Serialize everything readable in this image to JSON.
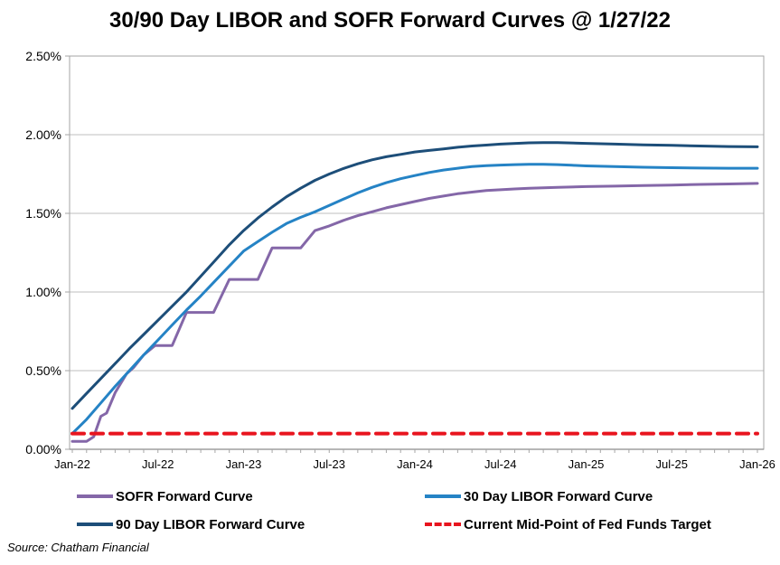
{
  "title": "30/90 Day LIBOR and SOFR Forward Curves @ 1/27/22",
  "source": "Source: Chatham Financial",
  "chart_data": {
    "type": "line",
    "title": "30/90 Day LIBOR and SOFR Forward Curves @ 1/27/22",
    "xlabel": "",
    "ylabel": "",
    "x_unit": "months since Jan-2022",
    "xlim": [
      0,
      48
    ],
    "ylim": [
      0,
      2.5
    ],
    "y_axis_format": "percent",
    "y_ticks": [
      0,
      0.5,
      1.0,
      1.5,
      2.0,
      2.5
    ],
    "y_tick_labels": [
      "0.00%",
      "0.50%",
      "1.00%",
      "1.50%",
      "2.00%",
      "2.50%"
    ],
    "x_tick_months": [
      0,
      6,
      12,
      18,
      24,
      30,
      36,
      42,
      48
    ],
    "x_tick_labels": [
      "Jan-22",
      "Jul-22",
      "Jan-23",
      "Jul-23",
      "Jan-24",
      "Jul-24",
      "Jan-25",
      "Jul-25",
      "Jan-26"
    ],
    "grid": "horizontal",
    "legend_position": "bottom",
    "legend_columns": 2,
    "frame_color": "#a6a6a6",
    "grid_color": "#bfbfbf",
    "series": [
      {
        "name": "SOFR Forward Curve",
        "color": "#8467a8",
        "style": "solid",
        "width": 3,
        "points": [
          [
            0,
            0.05
          ],
          [
            1,
            0.05
          ],
          [
            1.5,
            0.08
          ],
          [
            2,
            0.21
          ],
          [
            2.4,
            0.23
          ],
          [
            3,
            0.36
          ],
          [
            3.8,
            0.48
          ],
          [
            4.3,
            0.52
          ],
          [
            5,
            0.6
          ],
          [
            5.8,
            0.66
          ],
          [
            7,
            0.66
          ],
          [
            8,
            0.87
          ],
          [
            9.9,
            0.87
          ],
          [
            11,
            1.08
          ],
          [
            13,
            1.08
          ],
          [
            14,
            1.28
          ],
          [
            16,
            1.28
          ],
          [
            17,
            1.39
          ],
          [
            18,
            1.42
          ],
          [
            19,
            1.455
          ],
          [
            20,
            1.485
          ],
          [
            21,
            1.51
          ],
          [
            22,
            1.535
          ],
          [
            23,
            1.555
          ],
          [
            24,
            1.575
          ],
          [
            25,
            1.595
          ],
          [
            26,
            1.61
          ],
          [
            27,
            1.625
          ],
          [
            28,
            1.635
          ],
          [
            29,
            1.645
          ],
          [
            30,
            1.65
          ],
          [
            31,
            1.655
          ],
          [
            32,
            1.66
          ],
          [
            34,
            1.665
          ],
          [
            36,
            1.67
          ],
          [
            38,
            1.673
          ],
          [
            40,
            1.677
          ],
          [
            42,
            1.68
          ],
          [
            44,
            1.684
          ],
          [
            46,
            1.687
          ],
          [
            48,
            1.69
          ]
        ]
      },
      {
        "name": "30 Day LIBOR Forward Curve",
        "color": "#2583c5",
        "style": "solid",
        "width": 3,
        "points": [
          [
            0,
            0.1
          ],
          [
            1,
            0.19
          ],
          [
            2,
            0.295
          ],
          [
            3,
            0.4
          ],
          [
            4,
            0.5
          ],
          [
            5,
            0.6
          ],
          [
            6,
            0.695
          ],
          [
            7,
            0.79
          ],
          [
            8,
            0.885
          ],
          [
            9,
            0.975
          ],
          [
            10,
            1.07
          ],
          [
            11,
            1.165
          ],
          [
            12,
            1.26
          ],
          [
            13,
            1.32
          ],
          [
            14,
            1.38
          ],
          [
            15,
            1.435
          ],
          [
            16,
            1.475
          ],
          [
            17,
            1.51
          ],
          [
            18,
            1.55
          ],
          [
            19,
            1.59
          ],
          [
            20,
            1.63
          ],
          [
            21,
            1.665
          ],
          [
            22,
            1.695
          ],
          [
            23,
            1.72
          ],
          [
            24,
            1.74
          ],
          [
            25,
            1.76
          ],
          [
            26,
            1.775
          ],
          [
            27,
            1.787
          ],
          [
            28,
            1.797
          ],
          [
            29,
            1.803
          ],
          [
            30,
            1.807
          ],
          [
            31,
            1.81
          ],
          [
            32,
            1.812
          ],
          [
            33,
            1.812
          ],
          [
            34,
            1.81
          ],
          [
            35,
            1.806
          ],
          [
            36,
            1.802
          ],
          [
            38,
            1.797
          ],
          [
            40,
            1.793
          ],
          [
            42,
            1.79
          ],
          [
            44,
            1.788
          ],
          [
            46,
            1.787
          ],
          [
            48,
            1.787
          ]
        ]
      },
      {
        "name": "90 Day LIBOR Forward Curve",
        "color": "#1d4e79",
        "style": "solid",
        "width": 3,
        "points": [
          [
            0,
            0.26
          ],
          [
            1,
            0.355
          ],
          [
            2,
            0.45
          ],
          [
            3,
            0.545
          ],
          [
            4,
            0.64
          ],
          [
            5,
            0.73
          ],
          [
            6,
            0.82
          ],
          [
            7,
            0.91
          ],
          [
            8,
            1.0
          ],
          [
            9,
            1.1
          ],
          [
            10,
            1.2
          ],
          [
            11,
            1.3
          ],
          [
            12,
            1.39
          ],
          [
            13,
            1.47
          ],
          [
            14,
            1.54
          ],
          [
            15,
            1.605
          ],
          [
            16,
            1.66
          ],
          [
            17,
            1.71
          ],
          [
            18,
            1.75
          ],
          [
            19,
            1.785
          ],
          [
            20,
            1.815
          ],
          [
            21,
            1.84
          ],
          [
            22,
            1.86
          ],
          [
            23,
            1.875
          ],
          [
            24,
            1.89
          ],
          [
            25,
            1.9
          ],
          [
            26,
            1.91
          ],
          [
            27,
            1.92
          ],
          [
            28,
            1.928
          ],
          [
            29,
            1.934
          ],
          [
            30,
            1.94
          ],
          [
            32,
            1.948
          ],
          [
            33,
            1.95
          ],
          [
            34,
            1.95
          ],
          [
            36,
            1.945
          ],
          [
            38,
            1.94
          ],
          [
            40,
            1.935
          ],
          [
            42,
            1.932
          ],
          [
            44,
            1.928
          ],
          [
            46,
            1.925
          ],
          [
            48,
            1.923
          ]
        ]
      },
      {
        "name": "Current Mid-Point of Fed Funds Target",
        "color": "#e8141e",
        "style": "dashed",
        "width": 4,
        "points": [
          [
            0,
            0.1
          ],
          [
            48,
            0.1
          ]
        ]
      }
    ]
  },
  "legend": {
    "items": [
      {
        "label": "SOFR Forward Curve"
      },
      {
        "label": "30 Day LIBOR Forward Curve"
      },
      {
        "label": "90 Day LIBOR Forward Curve"
      },
      {
        "label": "Current Mid-Point of Fed Funds Target"
      }
    ]
  }
}
